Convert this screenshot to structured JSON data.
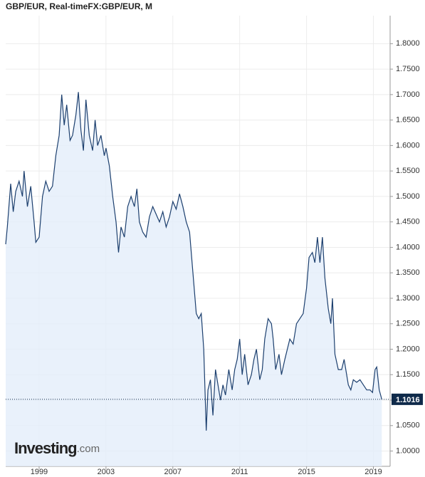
{
  "chart_data": {
    "type": "line",
    "title": "GBP/EUR, Real-timeFX:GBP/EUR, M",
    "color": "#1c3f6e",
    "fill": "#e3eefa",
    "x": [
      1997.0,
      1997.1,
      1997.3,
      1997.45,
      1997.6,
      1997.8,
      1998.0,
      1998.1,
      1998.3,
      1998.5,
      1998.7,
      1998.8,
      1999.0,
      1999.2,
      1999.4,
      1999.6,
      1999.8,
      2000.0,
      2000.2,
      2000.35,
      2000.5,
      2000.65,
      2000.85,
      2001.0,
      2001.2,
      2001.35,
      2001.5,
      2001.65,
      2001.8,
      2002.0,
      2002.2,
      2002.35,
      2002.5,
      2002.7,
      2002.9,
      2003.0,
      2003.2,
      2003.4,
      2003.6,
      2003.75,
      2003.9,
      2004.1,
      2004.3,
      2004.5,
      2004.7,
      2004.85,
      2005.0,
      2005.2,
      2005.4,
      2005.6,
      2005.8,
      2006.0,
      2006.2,
      2006.4,
      2006.6,
      2006.8,
      2007.0,
      2007.2,
      2007.4,
      2007.6,
      2007.8,
      2008.0,
      2008.2,
      2008.4,
      2008.55,
      2008.7,
      2008.85,
      2009.0,
      2009.1,
      2009.25,
      2009.4,
      2009.55,
      2009.7,
      2009.85,
      2010.0,
      2010.15,
      2010.35,
      2010.55,
      2010.7,
      2010.85,
      2011.0,
      2011.15,
      2011.3,
      2011.5,
      2011.7,
      2011.85,
      2012.0,
      2012.2,
      2012.35,
      2012.5,
      2012.7,
      2012.9,
      2013.0,
      2013.15,
      2013.35,
      2013.5,
      2013.7,
      2013.85,
      2014.0,
      2014.2,
      2014.4,
      2014.6,
      2014.8,
      2015.0,
      2015.15,
      2015.35,
      2015.5,
      2015.65,
      2015.8,
      2015.95,
      2016.1,
      2016.3,
      2016.45,
      2016.55,
      2016.7,
      2016.9,
      2017.1,
      2017.25,
      2017.5,
      2017.65,
      2017.8,
      2018.0,
      2018.2,
      2018.4,
      2018.6,
      2018.8,
      2018.95,
      2019.1,
      2019.2,
      2019.35,
      2019.5
    ],
    "values": [
      1.406,
      1.44,
      1.525,
      1.47,
      1.51,
      1.53,
      1.5,
      1.55,
      1.48,
      1.52,
      1.45,
      1.41,
      1.42,
      1.5,
      1.53,
      1.51,
      1.52,
      1.58,
      1.62,
      1.7,
      1.64,
      1.68,
      1.61,
      1.62,
      1.66,
      1.705,
      1.63,
      1.59,
      1.69,
      1.62,
      1.59,
      1.65,
      1.6,
      1.62,
      1.58,
      1.595,
      1.56,
      1.5,
      1.45,
      1.39,
      1.44,
      1.42,
      1.48,
      1.5,
      1.48,
      1.515,
      1.45,
      1.43,
      1.42,
      1.46,
      1.48,
      1.465,
      1.45,
      1.47,
      1.44,
      1.46,
      1.49,
      1.475,
      1.505,
      1.48,
      1.45,
      1.43,
      1.35,
      1.27,
      1.26,
      1.27,
      1.2,
      1.04,
      1.12,
      1.14,
      1.07,
      1.16,
      1.13,
      1.1,
      1.13,
      1.11,
      1.16,
      1.12,
      1.16,
      1.18,
      1.22,
      1.15,
      1.19,
      1.13,
      1.15,
      1.18,
      1.2,
      1.14,
      1.16,
      1.22,
      1.26,
      1.25,
      1.22,
      1.16,
      1.19,
      1.15,
      1.18,
      1.2,
      1.22,
      1.21,
      1.25,
      1.26,
      1.27,
      1.32,
      1.38,
      1.39,
      1.37,
      1.42,
      1.37,
      1.42,
      1.34,
      1.28,
      1.25,
      1.3,
      1.19,
      1.16,
      1.16,
      1.18,
      1.13,
      1.12,
      1.14,
      1.135,
      1.14,
      1.13,
      1.12,
      1.12,
      1.115,
      1.16,
      1.165,
      1.12,
      1.1016
    ],
    "current_value": 1.1016,
    "xlim": [
      1997,
      2020
    ],
    "xticks": [
      1999,
      2003,
      2007,
      2011,
      2015,
      2019
    ],
    "ylim": [
      0.97,
      1.855
    ],
    "yticks": [
      {
        "value": 1.0,
        "label": "1.0000"
      },
      {
        "value": 1.05,
        "label": "1.0500"
      },
      {
        "value": 1.1,
        "label": "1.1000"
      },
      {
        "value": 1.15,
        "label": "1.1500"
      },
      {
        "value": 1.2,
        "label": "1.2000"
      },
      {
        "value": 1.25,
        "label": "1.2500"
      },
      {
        "value": 1.3,
        "label": "1.3000"
      },
      {
        "value": 1.35,
        "label": "1.3500"
      },
      {
        "value": 1.4,
        "label": "1.4000"
      },
      {
        "value": 1.45,
        "label": "1.4500"
      },
      {
        "value": 1.5,
        "label": "1.5000"
      },
      {
        "value": 1.55,
        "label": "1.5500"
      },
      {
        "value": 1.6,
        "label": "1.6000"
      },
      {
        "value": 1.65,
        "label": "1.6500"
      },
      {
        "value": 1.7,
        "label": "1.7000"
      },
      {
        "value": 1.75,
        "label": "1.7500"
      },
      {
        "value": 1.8,
        "label": "1.8000"
      }
    ],
    "grid": true
  },
  "watermark": {
    "brand": "Investing",
    "suffix": ".com"
  }
}
